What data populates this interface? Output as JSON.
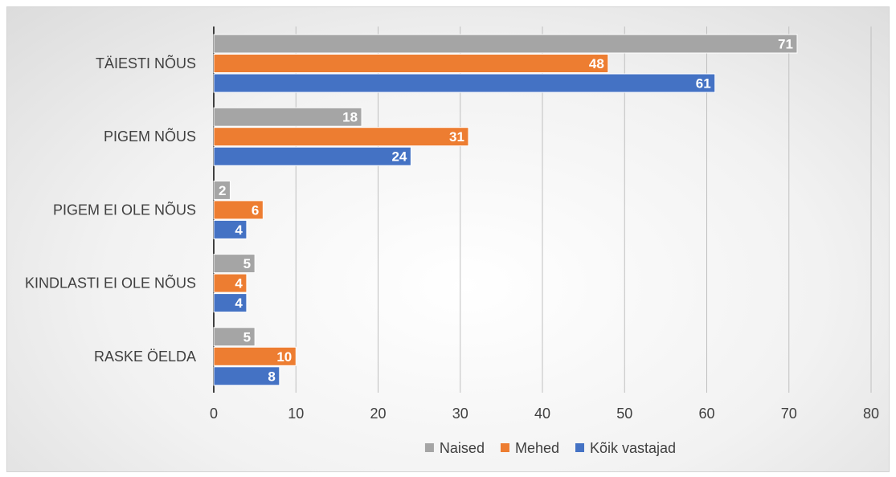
{
  "chart_data": {
    "type": "bar",
    "orientation": "horizontal",
    "categories": [
      "TÄIESTI NÕUS",
      "PIGEM NÕUS",
      "PIGEM EI OLE NÕUS",
      "KINDLASTI EI OLE NÕUS",
      "RASKE ÖELDA"
    ],
    "series": [
      {
        "name": "Naised",
        "color": "#a5a5a5",
        "values": [
          71,
          18,
          2,
          5,
          5
        ]
      },
      {
        "name": "Mehed",
        "color": "#ed7d31",
        "values": [
          48,
          31,
          6,
          4,
          10
        ]
      },
      {
        "name": "Kõik vastajad",
        "color": "#4472c4",
        "values": [
          61,
          24,
          4,
          4,
          8
        ]
      }
    ],
    "xlim": [
      0,
      80
    ],
    "xticks": [
      0,
      10,
      20,
      30,
      40,
      50,
      60,
      70,
      80
    ],
    "grid": true,
    "data_labels": true,
    "legend_position": "bottom",
    "title": "",
    "xlabel": "",
    "ylabel": ""
  }
}
